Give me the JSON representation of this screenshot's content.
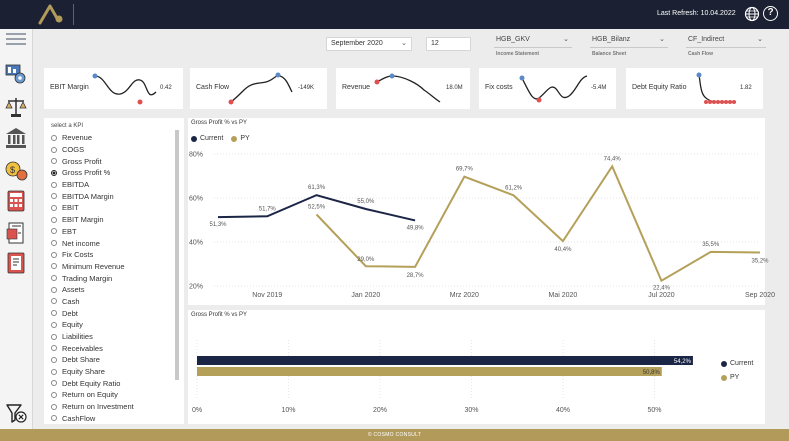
{
  "header": {
    "refresh": "Last Refresh: 10.04.2022"
  },
  "filters": {
    "period": "September 2020",
    "month": "12",
    "income": {
      "value": "HGB_GKV",
      "label": "Income Statement"
    },
    "balance": {
      "value": "HGB_Bilanz",
      "label": "Balance Sheet"
    },
    "cashflow": {
      "value": "CF_Indirect",
      "label": "Cash Flow"
    }
  },
  "kpis": [
    {
      "title": "EBIT Margin",
      "value": "0.42"
    },
    {
      "title": "Cash Flow",
      "value": "-149K"
    },
    {
      "title": "Revenue",
      "value": "18.0M"
    },
    {
      "title": "Fix costs",
      "value": "-5.4M"
    },
    {
      "title": "Debt Equity Ratio",
      "value": "1.82"
    }
  ],
  "kpi_selector": {
    "heading": "select a KPI",
    "selected": "Gross Profit %",
    "items": [
      "Revenue",
      "COGS",
      "Gross Profit",
      "Gross Profit %",
      "EBITDA",
      "EBITDA Margin",
      "EBIT",
      "EBIT Margin",
      "EBT",
      "Net income",
      "Fix Costs",
      "Minimum Revenue",
      "Trading Margin",
      "Assets",
      "Cash",
      "Debt",
      "Equity",
      "Liabilities",
      "Receivables",
      "Debt Share",
      "Equity Share",
      "Debt Equity Ratio",
      "Return on Equity",
      "Return on Investment",
      "CashFlow"
    ]
  },
  "colors": {
    "current": "#1b2545",
    "py": "#b5a05a",
    "accent": "#b29b5a"
  },
  "chart_data": [
    {
      "type": "line",
      "title": "Gross Profit % vs PY",
      "legend": [
        "Current",
        "PY"
      ],
      "x_tick_labels": [
        "Nov 2019",
        "Jan 2020",
        "Mrz 2020",
        "Mai 2020",
        "Jul 2020",
        "Sep 2020"
      ],
      "y_tick_labels": [
        "20%",
        "40%",
        "60%",
        "80%"
      ],
      "ylim": [
        20,
        80
      ],
      "series": [
        {
          "name": "Current",
          "x": [
            0,
            1,
            2,
            3,
            4
          ],
          "values": [
            51.3,
            51.7,
            61.3,
            55.0,
            49.8
          ],
          "labels": [
            "51,3%",
            "51,7%",
            "61,3%",
            "55,0%",
            "49,8%"
          ]
        },
        {
          "name": "PY",
          "x": [
            2,
            3,
            4,
            5,
            6,
            7,
            8,
            9,
            10,
            11
          ],
          "values": [
            52.5,
            29.0,
            28.7,
            69.7,
            61.2,
            40.4,
            74.4,
            22.4,
            35.5,
            35.2
          ],
          "labels": [
            "52,5%",
            "29,0%",
            "28,7%",
            "69,7%",
            "61,2%",
            "40,4%",
            "74,4%",
            "22,4%",
            "35,5%",
            "35,2%"
          ]
        }
      ]
    },
    {
      "type": "bar",
      "title": "Gross Profit % vs PY",
      "categories": [
        "Current",
        "PY"
      ],
      "values": [
        54.2,
        50.8
      ],
      "labels": [
        "54,2%",
        "50,8%"
      ],
      "x_tick_labels": [
        "0%",
        "10%",
        "20%",
        "30%",
        "40%",
        "50%"
      ],
      "xlim": [
        0,
        60
      ]
    }
  ],
  "footer": "© COSMO CONSULT"
}
